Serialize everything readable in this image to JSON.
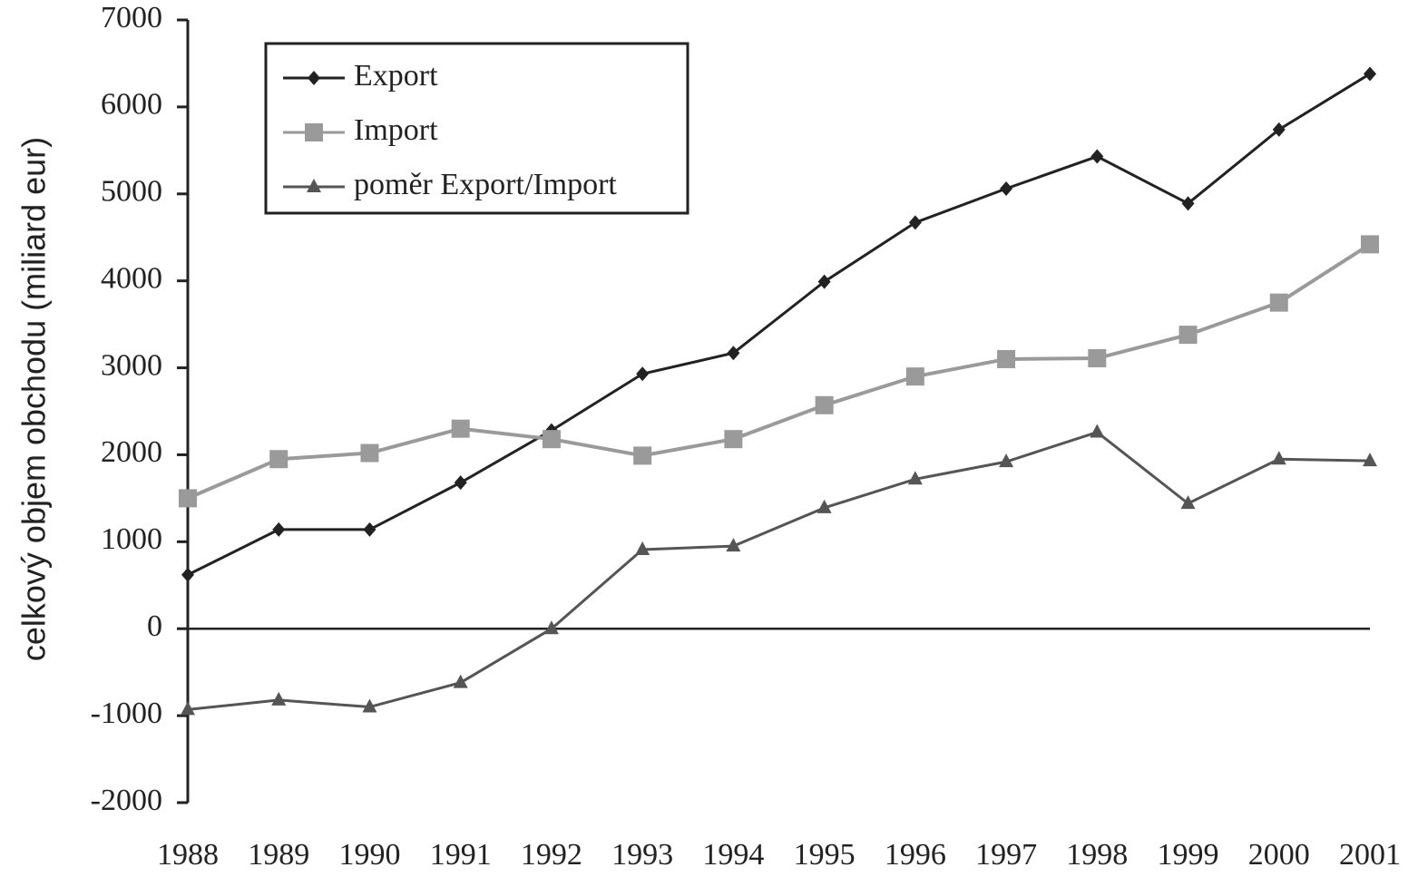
{
  "chart_data": {
    "type": "line",
    "y_label": "celkový objem obchodu (miliard eur)",
    "categories": [
      "1988",
      "1989",
      "1990",
      "1991",
      "1992",
      "1993",
      "1994",
      "1995",
      "1996",
      "1997",
      "1998",
      "1999",
      "2000",
      "2001"
    ],
    "series": [
      {
        "name": "Export",
        "color": "#222222",
        "marker": "diamond",
        "values": [
          620,
          1140,
          1140,
          1680,
          2280,
          2930,
          3170,
          3990,
          4670,
          5060,
          5430,
          4890,
          5740,
          6380
        ]
      },
      {
        "name": "Import",
        "color": "#9a9a9a",
        "marker": "square",
        "values": [
          1500,
          1950,
          2020,
          2300,
          2180,
          1990,
          2180,
          2570,
          2900,
          3100,
          3110,
          3380,
          3750,
          4420
        ]
      },
      {
        "name": "poměr Export/Import",
        "color": "#555555",
        "marker": "triangle",
        "values": [
          -930,
          -820,
          -900,
          -620,
          0,
          910,
          950,
          1390,
          1720,
          1920,
          2260,
          1440,
          1950,
          1930
        ]
      }
    ],
    "ylim": [
      -2000,
      7000
    ],
    "yticks": [
      -2000,
      -1000,
      0,
      1000,
      2000,
      3000,
      4000,
      5000,
      6000,
      7000
    ],
    "zero_line": true,
    "legend": "top-left"
  }
}
